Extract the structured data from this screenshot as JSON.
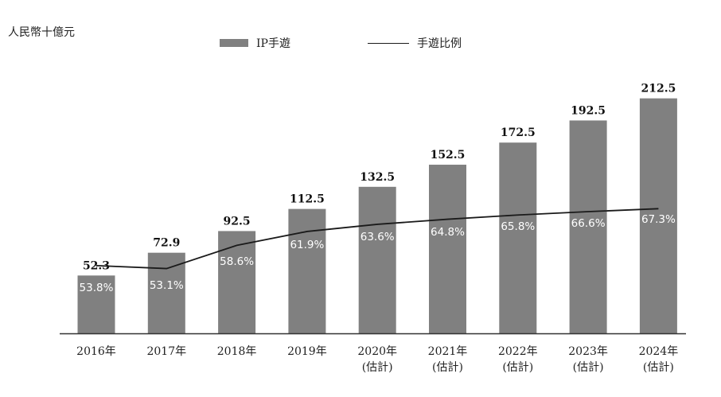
{
  "unit_label": "人民幣十億元",
  "legend": {
    "bar_label": "IP手遊",
    "line_label": "手遊比例"
  },
  "colors": {
    "bar": "#808080",
    "line": "#1a1a1a",
    "axis": "#333333",
    "inner_label": "#ffffff",
    "value_label": "#111111"
  },
  "chart_data": {
    "type": "bar",
    "categories": [
      [
        "2016年"
      ],
      [
        "2017年"
      ],
      [
        "2018年"
      ],
      [
        "2019年"
      ],
      [
        "2020年",
        "(估計)"
      ],
      [
        "2021年",
        "(估計)"
      ],
      [
        "2022年",
        "(估計)"
      ],
      [
        "2023年",
        "(估計)"
      ],
      [
        "2024年",
        "(估計)"
      ]
    ],
    "series": [
      {
        "name": "IP手遊",
        "type": "bar",
        "values": [
          52.3,
          72.9,
          92.5,
          112.5,
          132.5,
          152.5,
          172.5,
          192.5,
          212.5
        ],
        "labels": [
          "52.3",
          "72.9",
          "92.5",
          "112.5",
          "132.5",
          "152.5",
          "172.5",
          "192.5",
          "212.5"
        ]
      },
      {
        "name": "手遊比例",
        "type": "line",
        "values": [
          53.8,
          53.1,
          58.6,
          61.9,
          63.6,
          64.8,
          65.8,
          66.6,
          67.3
        ],
        "labels": [
          "53.8%",
          "53.1%",
          "58.6%",
          "61.9%",
          "63.6%",
          "64.8%",
          "65.8%",
          "66.6%",
          "67.3%"
        ]
      }
    ],
    "ylim_bar": [
      0,
      220
    ],
    "ylim_line": [
      0,
      100
    ],
    "grid": false,
    "legend_position": "top-center"
  }
}
